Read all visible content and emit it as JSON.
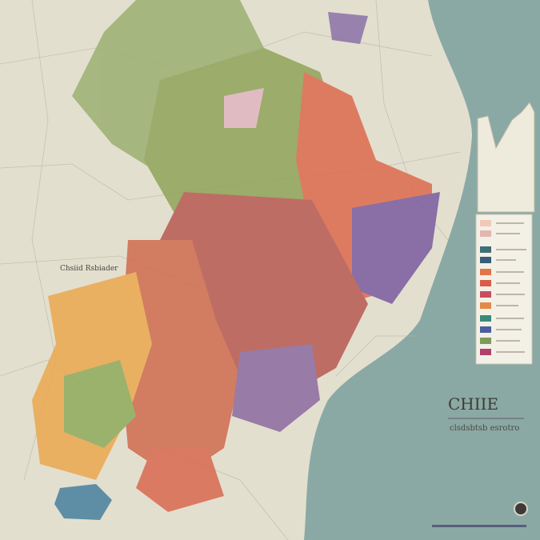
{
  "map": {
    "title": "CHIIE",
    "subtitle": "clsdsbtsb esrotro",
    "region_label": "Chsiid Rsbiader"
  }
}
